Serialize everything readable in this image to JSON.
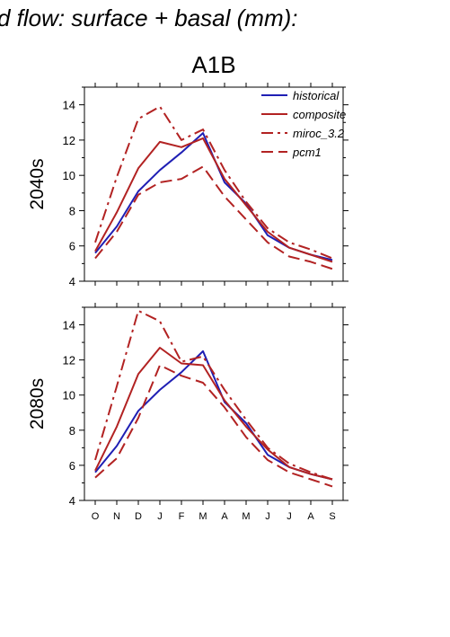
{
  "title": "d flow: surface + basal (mm):",
  "scenario_label": "A1B",
  "chart_data": [
    {
      "type": "line",
      "title": "A1B",
      "ylabel": "2040s",
      "xlabel": "",
      "ylim": [
        4,
        15
      ],
      "yticks": [
        4,
        6,
        8,
        10,
        12,
        14
      ],
      "categories": [
        "O",
        "N",
        "D",
        "J",
        "F",
        "M",
        "A",
        "M",
        "J",
        "J",
        "A",
        "S"
      ],
      "show_x_tick_labels": false,
      "grid": false,
      "legend": "top-right",
      "series": [
        {
          "name": "historical",
          "color": "#1f1fb4",
          "dash": "solid",
          "values": [
            5.6,
            7.1,
            9.1,
            10.3,
            11.3,
            12.4,
            9.6,
            8.4,
            6.6,
            5.9,
            5.5,
            5.2
          ]
        },
        {
          "name": "composite",
          "color": "#b22222",
          "dash": "solid",
          "values": [
            5.7,
            7.9,
            10.4,
            11.9,
            11.6,
            12.1,
            9.8,
            8.3,
            6.8,
            5.9,
            5.5,
            5.1
          ]
        },
        {
          "name": "miroc_3.2",
          "color": "#b22222",
          "dash": "dashdot",
          "values": [
            6.2,
            9.9,
            13.2,
            13.9,
            12.0,
            12.6,
            10.3,
            8.5,
            7.0,
            6.2,
            5.8,
            5.3
          ]
        },
        {
          "name": "pcm1",
          "color": "#b22222",
          "dash": "dashed",
          "values": [
            5.3,
            6.8,
            8.9,
            9.6,
            9.8,
            10.5,
            8.8,
            7.5,
            6.2,
            5.4,
            5.1,
            4.7
          ]
        }
      ]
    },
    {
      "type": "line",
      "ylabel": "2080s",
      "xlabel": "",
      "ylim": [
        4,
        15
      ],
      "yticks": [
        4,
        6,
        8,
        10,
        12,
        14
      ],
      "categories": [
        "O",
        "N",
        "D",
        "J",
        "F",
        "M",
        "A",
        "M",
        "J",
        "J",
        "A",
        "S"
      ],
      "show_x_tick_labels": true,
      "grid": false,
      "series": [
        {
          "name": "historical",
          "color": "#1f1fb4",
          "dash": "solid",
          "values": [
            5.6,
            7.1,
            9.1,
            10.3,
            11.3,
            12.5,
            9.6,
            8.4,
            6.6,
            5.9,
            5.5,
            5.2
          ]
        },
        {
          "name": "composite",
          "color": "#b22222",
          "dash": "solid",
          "values": [
            5.7,
            8.2,
            11.2,
            12.7,
            11.8,
            11.7,
            9.7,
            8.2,
            6.9,
            5.9,
            5.5,
            5.2
          ]
        },
        {
          "name": "miroc_3.2",
          "color": "#b22222",
          "dash": "dashdot",
          "values": [
            6.3,
            10.5,
            14.8,
            14.2,
            11.9,
            12.2,
            10.3,
            8.6,
            7.0,
            6.1,
            5.6,
            5.2
          ]
        },
        {
          "name": "pcm1",
          "color": "#b22222",
          "dash": "dashed",
          "values": [
            5.3,
            6.4,
            8.7,
            11.7,
            11.1,
            10.7,
            9.3,
            7.6,
            6.3,
            5.6,
            5.2,
            4.8
          ]
        }
      ]
    }
  ]
}
